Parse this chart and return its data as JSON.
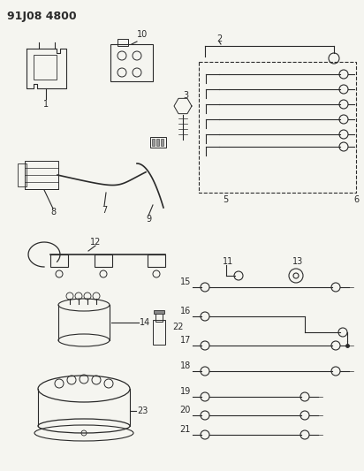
{
  "title": "91J08 4800",
  "bg_color": "#f5f5f0",
  "line_color": "#2a2a2a",
  "title_fontsize": 9,
  "label_fontsize": 7,
  "fig_w": 4.12,
  "fig_h": 5.33,
  "dpi": 100
}
